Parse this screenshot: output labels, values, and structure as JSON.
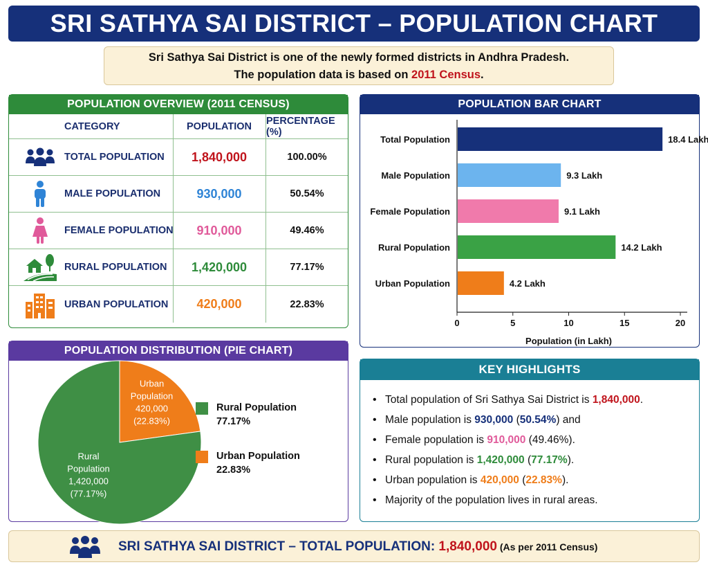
{
  "title": "SRI SATHYA SAI DISTRICT – POPULATION CHART",
  "intro": {
    "line1": "Sri Sathya Sai District is one of the newly formed districts in Andhra Pradesh.",
    "line2_prefix": "The population data is based on ",
    "line2_highlight": "2011 Census",
    "line2_suffix": "."
  },
  "colors": {
    "total": "#c0141c",
    "male": "#2f84d6",
    "female": "#e05a9a",
    "rural": "#2e8b3a",
    "urban": "#ef7d1a",
    "navy": "#16307a"
  },
  "overview": {
    "title": "POPULATION OVERVIEW (2011 CENSUS)",
    "headers": {
      "category": "CATEGORY",
      "population": "POPULATION",
      "percentage": "PERCENTAGE (%)"
    },
    "rows": [
      {
        "icon": "people-group-icon",
        "category": "TOTAL POPULATION",
        "population": "1,840,000",
        "percentage": "100.00%"
      },
      {
        "icon": "male-icon",
        "category": "MALE POPULATION",
        "population": "930,000",
        "percentage": "50.54%"
      },
      {
        "icon": "female-icon",
        "category": "FEMALE POPULATION",
        "population": "910,000",
        "percentage": "49.46%"
      },
      {
        "icon": "rural-house-icon",
        "category": "RURAL POPULATION",
        "population": "1,420,000",
        "percentage": "77.17%"
      },
      {
        "icon": "city-buildings-icon",
        "category": "URBAN POPULATION",
        "population": "420,000",
        "percentage": "22.83%"
      }
    ]
  },
  "bar_panel_title": "POPULATION BAR CHART",
  "pie_panel_title": "POPULATION DISTRIBUTION (PIE CHART)",
  "pie_legend": [
    {
      "name": "Rural Population",
      "pct": "77.17%"
    },
    {
      "name": "Urban Population",
      "pct": "22.83%"
    }
  ],
  "pie_labels": [
    {
      "l1": "Rural",
      "l2": "Population",
      "l3": "1,420,000",
      "l4": "(77.17%)"
    },
    {
      "l1": "Urban",
      "l2": "Population",
      "l3": "420,000",
      "l4": "(22.83%)"
    }
  ],
  "chart_data": [
    {
      "type": "bar",
      "orientation": "horizontal",
      "categories": [
        "Total Population",
        "Male Population",
        "Female Population",
        "Rural Population",
        "Urban Population"
      ],
      "values": [
        18.4,
        9.3,
        9.1,
        14.2,
        4.2
      ],
      "value_labels": [
        "18.4 Lakh",
        "9.3 Lakh",
        "9.1 Lakh",
        "14.2 Lakh",
        "4.2 Lakh"
      ],
      "colors": [
        "#16307a",
        "#6cb4ee",
        "#f07aab",
        "#3aa245",
        "#ef7d1a"
      ],
      "xlabel": "Population (in Lakh)",
      "xlim": [
        0,
        20
      ],
      "xticks": [
        0,
        5,
        10,
        15,
        20
      ],
      "grid": false
    },
    {
      "type": "pie",
      "categories": [
        "Rural Population",
        "Urban Population"
      ],
      "values": [
        77.17,
        22.83
      ],
      "colors": [
        "#3f8f45",
        "#ef7d1a"
      ]
    }
  ],
  "highlights": {
    "title": "KEY HIGHLIGHTS",
    "h1_pre": "Total population of Sri Sathya Sai District is ",
    "h1_val": "1,840,000",
    "h1_post": ".",
    "h2_pre": "Male population is ",
    "h2_val": "930,000",
    "h2_open": " (",
    "h2_pct": "50.54%",
    "h2_post": ") and",
    "h3_pre": "Female population is ",
    "h3_val": "910,000",
    "h3_post": " (49.46%).",
    "h4_pre": "Rural population is ",
    "h4_val": "1,420,000",
    "h4_open": " (",
    "h4_pct": "77.17%",
    "h4_post": ").",
    "h5_pre": "Urban population is ",
    "h5_val": "420,000",
    "h5_open": " (",
    "h5_pct": "22.83%",
    "h5_post": ").",
    "h6": "Majority of the population lives in rural areas."
  },
  "footer": {
    "label": "SRI SATHYA SAI DISTRICT – TOTAL POPULATION: ",
    "value": "1,840,000",
    "note": " (As per 2011 Census)"
  }
}
